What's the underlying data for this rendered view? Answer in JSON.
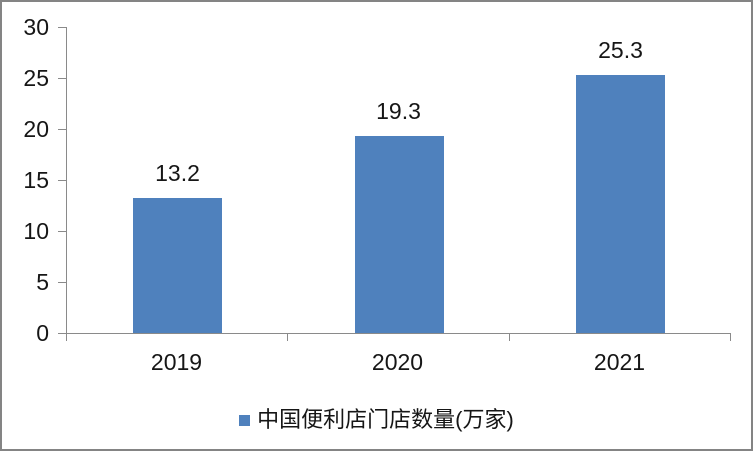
{
  "chart_data": {
    "type": "bar",
    "title": "",
    "categories": [
      "2019",
      "2020",
      "2021"
    ],
    "values": [
      13.2,
      19.3,
      25.3
    ],
    "data_labels": [
      "13.2",
      "19.3",
      "25.3"
    ],
    "series_name": "中国便利店门店数量(万家)",
    "xlabel": "",
    "ylabel": "",
    "ylim": [
      0,
      30
    ],
    "yticks": [
      0,
      5,
      10,
      15,
      20,
      25,
      30
    ],
    "grid": false,
    "legend_position": "bottom",
    "bar_color": "#4f81bd",
    "axis_color": "#8a8a8a",
    "text_color": "#161616",
    "background_color": "#ffffff",
    "frame_border_color": "#848484"
  },
  "legend": {
    "items": [
      {
        "label": "中国便利店门店数量(万家)",
        "color": "#4f81bd"
      }
    ]
  }
}
